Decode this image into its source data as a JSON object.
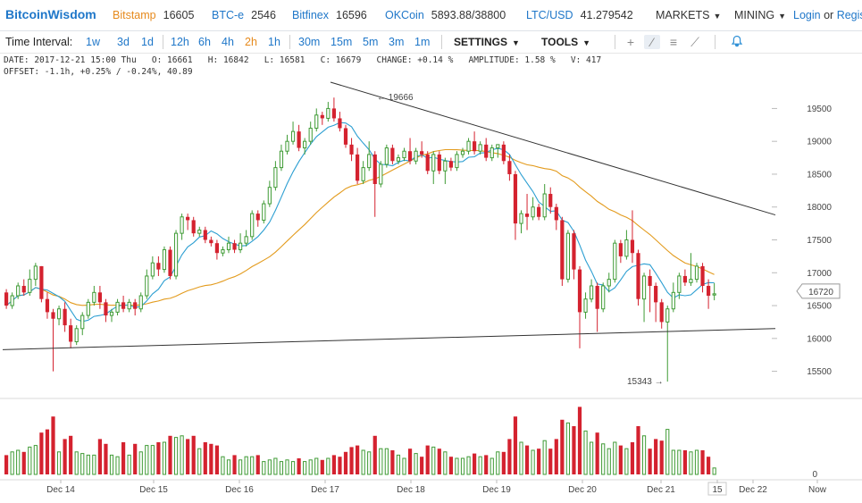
{
  "header": {
    "logo": "BitcoinWisdom",
    "exchanges": [
      {
        "name": "Bitstamp",
        "price": "16605",
        "accent": "#e68a1d"
      },
      {
        "name": "BTC-e",
        "price": "2546",
        "accent": "#1f77c9"
      },
      {
        "name": "Bitfinex",
        "price": "16596",
        "accent": "#1f77c9"
      },
      {
        "name": "OKCoin",
        "price": "5893.88/38800",
        "accent": "#1f77c9"
      },
      {
        "name": "LTC/USD",
        "price": "41.279542",
        "accent": "#1f77c9"
      }
    ],
    "menus": [
      "MARKETS",
      "MINING"
    ],
    "login": "Login",
    "or": "or",
    "register": "Regis"
  },
  "toolbar": {
    "label": "Time Interval:",
    "intervals": [
      "1w",
      "3d",
      "1d",
      "12h",
      "6h",
      "4h",
      "2h",
      "1h",
      "30m",
      "15m",
      "5m",
      "3m",
      "1m"
    ],
    "active_interval": "2h",
    "settings": "SETTINGS",
    "tools": "TOOLS",
    "icons": [
      "crosshair-icon",
      "trendline-icon",
      "horizontal-lines-icon",
      "fib-icon",
      "alert-bell-icon"
    ]
  },
  "info": {
    "line1": "DATE: 2017-12-21 15:00 Thu   O: 16661   H: 16842   L: 16581   C: 16679   CHANGE: +0.14 %   AMPLITUDE: 1.58 %   V: 417",
    "line2": "OFFSET: -1.1h, +0.25% / -0.24%, 40.89"
  },
  "chart_data": {
    "type": "candlestick",
    "y_range": [
      15100,
      19900
    ],
    "y_ticks": [
      15500,
      16000,
      16500,
      17000,
      17500,
      18000,
      18500,
      19000,
      19500
    ],
    "x_labels": [
      "Dec 14",
      "Dec 15",
      "Dec 16",
      "Dec 17",
      "Dec 18",
      "Dec 19",
      "Dec 20",
      "Dec 21",
      "15",
      "Dec 22",
      "Now"
    ],
    "current_price": "16720",
    "high_marker": "19666",
    "low_marker": "15343",
    "volume_zero_label": "0",
    "colors": {
      "up": "#3f9b35",
      "down": "#d4222f",
      "ma_fast": "#2d9fd2",
      "ma_slow": "#e39b1d",
      "trendline": "#333333"
    },
    "candles": [
      [
        16700,
        16500,
        16750,
        16450,
        60
      ],
      [
        16500,
        16650,
        16700,
        16450,
        70
      ],
      [
        16650,
        16800,
        16850,
        16600,
        75
      ],
      [
        16800,
        16700,
        16900,
        16650,
        70
      ],
      [
        16700,
        16900,
        17050,
        16650,
        85
      ],
      [
        16900,
        17100,
        17150,
        16800,
        90
      ],
      [
        17100,
        16600,
        17100,
        16550,
        130
      ],
      [
        16600,
        16400,
        16700,
        16300,
        140
      ],
      [
        16400,
        16300,
        16450,
        15500,
        180
      ],
      [
        16300,
        16450,
        16500,
        16200,
        70
      ],
      [
        16450,
        16200,
        16550,
        16100,
        110
      ],
      [
        16200,
        15950,
        16300,
        15850,
        120
      ],
      [
        15950,
        16150,
        16200,
        15900,
        70
      ],
      [
        16150,
        16350,
        16400,
        16050,
        65
      ],
      [
        16350,
        16550,
        16600,
        16300,
        60
      ],
      [
        16550,
        16700,
        16800,
        16500,
        60
      ],
      [
        16700,
        16550,
        16800,
        16450,
        110
      ],
      [
        16550,
        16350,
        16600,
        16250,
        95
      ],
      [
        16350,
        16400,
        16450,
        16250,
        60
      ],
      [
        16400,
        16550,
        16600,
        16350,
        55
      ],
      [
        16550,
        16450,
        16650,
        16400,
        100
      ],
      [
        16450,
        16550,
        16600,
        16400,
        60
      ],
      [
        16550,
        16450,
        16600,
        16350,
        95
      ],
      [
        16450,
        16650,
        16700,
        16400,
        70
      ],
      [
        16650,
        16950,
        17050,
        16600,
        90
      ],
      [
        16950,
        17150,
        17250,
        16900,
        90
      ],
      [
        17150,
        17050,
        17250,
        16950,
        100
      ],
      [
        17050,
        17350,
        17400,
        17000,
        100
      ],
      [
        17350,
        16950,
        17400,
        16900,
        120
      ],
      [
        16950,
        17600,
        17650,
        16900,
        115
      ],
      [
        17600,
        17850,
        17900,
        17500,
        120
      ],
      [
        17850,
        17800,
        17900,
        17650,
        110
      ],
      [
        17800,
        17600,
        17850,
        17550,
        120
      ],
      [
        17600,
        17650,
        17700,
        17550,
        80
      ],
      [
        17650,
        17500,
        17700,
        17450,
        100
      ],
      [
        17500,
        17450,
        17550,
        17400,
        95
      ],
      [
        17450,
        17300,
        17500,
        17200,
        90
      ],
      [
        17300,
        17350,
        17400,
        17250,
        55
      ],
      [
        17350,
        17450,
        17550,
        17300,
        45
      ],
      [
        17450,
        17350,
        17500,
        17300,
        60
      ],
      [
        17350,
        17450,
        17600,
        17300,
        45
      ],
      [
        17450,
        17550,
        17650,
        17400,
        55
      ],
      [
        17550,
        17900,
        17950,
        17500,
        55
      ],
      [
        17900,
        17800,
        17950,
        17700,
        60
      ],
      [
        17800,
        18050,
        18100,
        17750,
        40
      ],
      [
        18050,
        18300,
        18400,
        18000,
        45
      ],
      [
        18300,
        18600,
        18700,
        18250,
        50
      ],
      [
        18600,
        18850,
        18950,
        18550,
        40
      ],
      [
        18850,
        19000,
        19100,
        18800,
        45
      ],
      [
        19000,
        19150,
        19300,
        18950,
        40
      ],
      [
        19150,
        18900,
        19250,
        18850,
        50
      ],
      [
        18900,
        19000,
        19050,
        18800,
        40
      ],
      [
        19000,
        19200,
        19300,
        18950,
        45
      ],
      [
        19200,
        19400,
        19500,
        19150,
        50
      ],
      [
        19400,
        19350,
        19450,
        19250,
        45
      ],
      [
        19350,
        19500,
        19600,
        19300,
        50
      ],
      [
        19500,
        19350,
        19666,
        19300,
        60
      ],
      [
        19350,
        19200,
        19450,
        19150,
        55
      ],
      [
        19200,
        18950,
        19250,
        18900,
        70
      ],
      [
        18950,
        18800,
        19050,
        18700,
        85
      ],
      [
        18800,
        18400,
        18900,
        18350,
        90
      ],
      [
        18400,
        18600,
        18700,
        18350,
        75
      ],
      [
        18600,
        18800,
        19000,
        18550,
        70
      ],
      [
        18800,
        18350,
        18850,
        17850,
        120
      ],
      [
        18350,
        18650,
        18700,
        18300,
        80
      ],
      [
        18650,
        18900,
        18950,
        18600,
        80
      ],
      [
        18900,
        18700,
        18950,
        18650,
        75
      ],
      [
        18700,
        18750,
        18800,
        18650,
        60
      ],
      [
        18750,
        18850,
        18900,
        18700,
        50
      ],
      [
        18850,
        18700,
        19050,
        18650,
        80
      ],
      [
        18700,
        18850,
        18900,
        18650,
        65
      ],
      [
        18850,
        18800,
        19000,
        18750,
        55
      ],
      [
        18800,
        18550,
        18850,
        18500,
        90
      ],
      [
        18550,
        18800,
        18850,
        18350,
        85
      ],
      [
        18800,
        18550,
        18850,
        18500,
        80
      ],
      [
        18550,
        18700,
        18750,
        18350,
        70
      ],
      [
        18700,
        18600,
        18750,
        18550,
        55
      ],
      [
        18600,
        18800,
        18850,
        18550,
        50
      ],
      [
        18800,
        18850,
        18900,
        18750,
        50
      ],
      [
        18850,
        19000,
        19050,
        18800,
        55
      ],
      [
        19000,
        18850,
        19150,
        18800,
        65
      ],
      [
        18850,
        18950,
        19000,
        18800,
        55
      ],
      [
        18950,
        18750,
        19050,
        18700,
        60
      ],
      [
        18750,
        18900,
        18950,
        18700,
        50
      ],
      [
        18900,
        18950,
        18950,
        18750,
        70
      ],
      [
        18950,
        18700,
        19000,
        18650,
        70
      ],
      [
        18700,
        18500,
        18800,
        18400,
        110
      ],
      [
        18500,
        17750,
        18550,
        17500,
        180
      ],
      [
        17750,
        17900,
        17950,
        17600,
        100
      ],
      [
        17900,
        17850,
        18200,
        17650,
        90
      ],
      [
        17850,
        18000,
        18150,
        17800,
        75
      ],
      [
        18000,
        17850,
        18050,
        17800,
        80
      ],
      [
        17850,
        18200,
        18350,
        17800,
        105
      ],
      [
        18200,
        18000,
        18300,
        17900,
        80
      ],
      [
        18000,
        17800,
        18050,
        17650,
        110
      ],
      [
        17800,
        16900,
        17850,
        16800,
        170
      ],
      [
        16900,
        17600,
        17650,
        16850,
        160
      ],
      [
        17600,
        17050,
        17650,
        16900,
        150
      ],
      [
        17050,
        16400,
        17100,
        15850,
        210
      ],
      [
        16400,
        16600,
        16700,
        16300,
        135
      ],
      [
        16600,
        16800,
        16900,
        16550,
        100
      ],
      [
        16800,
        16450,
        16850,
        16100,
        130
      ],
      [
        16450,
        16800,
        16850,
        16400,
        95
      ],
      [
        16800,
        16900,
        17000,
        16700,
        80
      ],
      [
        16900,
        17450,
        17500,
        16850,
        100
      ],
      [
        17450,
        17250,
        17500,
        17150,
        90
      ],
      [
        17250,
        17500,
        17650,
        17200,
        80
      ],
      [
        17500,
        17300,
        17950,
        17150,
        100
      ],
      [
        17300,
        16600,
        17350,
        16500,
        150
      ],
      [
        16600,
        16950,
        17000,
        16250,
        120
      ],
      [
        16950,
        16800,
        17050,
        16400,
        80
      ],
      [
        16800,
        16550,
        16850,
        16250,
        110
      ],
      [
        16550,
        16250,
        16600,
        16150,
        105
      ],
      [
        16250,
        16450,
        16500,
        15343,
        140
      ],
      [
        16450,
        16700,
        16850,
        16400,
        75
      ],
      [
        16700,
        16950,
        17000,
        16600,
        75
      ],
      [
        16950,
        16850,
        17050,
        16800,
        75
      ],
      [
        16850,
        16900,
        17300,
        16800,
        70
      ],
      [
        16900,
        17100,
        17150,
        16850,
        75
      ],
      [
        17100,
        16800,
        17150,
        16700,
        75
      ],
      [
        16800,
        16650,
        16900,
        16450,
        55
      ],
      [
        16661,
        16679,
        16842,
        16581,
        20
      ]
    ]
  }
}
